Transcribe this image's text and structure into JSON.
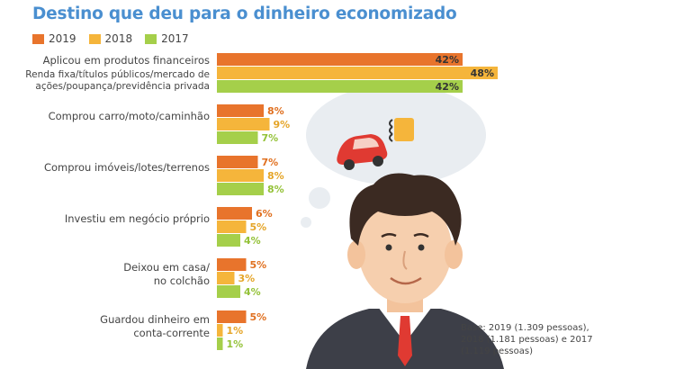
{
  "title": "Destino que deu para o dinheiro economizado",
  "legend": [
    {
      "label": "2019",
      "color": "#e8742c"
    },
    {
      "label": "2018",
      "color": "#f5b53b"
    },
    {
      "label": "2017",
      "color": "#a5cf4a"
    }
  ],
  "base_note": "Base: 2019 (1.309 pessoas),\n2018 (1.181 pessoas) e 2017\n(1.119 pessoas)",
  "chart_data": {
    "type": "bar",
    "orientation": "horizontal",
    "title": "Destino que deu para o dinheiro economizado",
    "categories": [
      {
        "label": "Aplicou em produtos financeiros",
        "sub": [
          "Renda fixa/títulos públicos/mercado de",
          "ações/poupança/previdência privada"
        ]
      },
      {
        "label": "Comprou carro/moto/caminhão",
        "sub": []
      },
      {
        "label": "Comprou imóveis/lotes/terrenos",
        "sub": []
      },
      {
        "label": "Investiu em negócio próprio",
        "sub": []
      },
      {
        "label": "Deixou em casa/",
        "label2": "no colchão",
        "sub": []
      },
      {
        "label": "Guardou dinheiro em",
        "label2": "conta-corrente",
        "sub": []
      }
    ],
    "series": [
      {
        "name": "2019",
        "color": "#e8742c",
        "values": [
          42,
          8,
          7,
          6,
          5,
          5
        ],
        "labels": [
          "42%",
          "8%",
          "7%",
          "6%",
          "5%",
          "5%"
        ]
      },
      {
        "name": "2018",
        "color": "#f5b53b",
        "values": [
          48,
          9,
          8,
          5,
          3,
          1
        ],
        "labels": [
          "48%",
          "9%",
          "8%",
          "5%",
          "3%",
          "1%"
        ]
      },
      {
        "name": "2017",
        "color": "#a5cf4a",
        "values": [
          42,
          7,
          8,
          4,
          4,
          1
        ],
        "labels": [
          "42%",
          "7%",
          "8%",
          "4%",
          "4%",
          "1%"
        ]
      }
    ],
    "legend_position": "top-left"
  }
}
